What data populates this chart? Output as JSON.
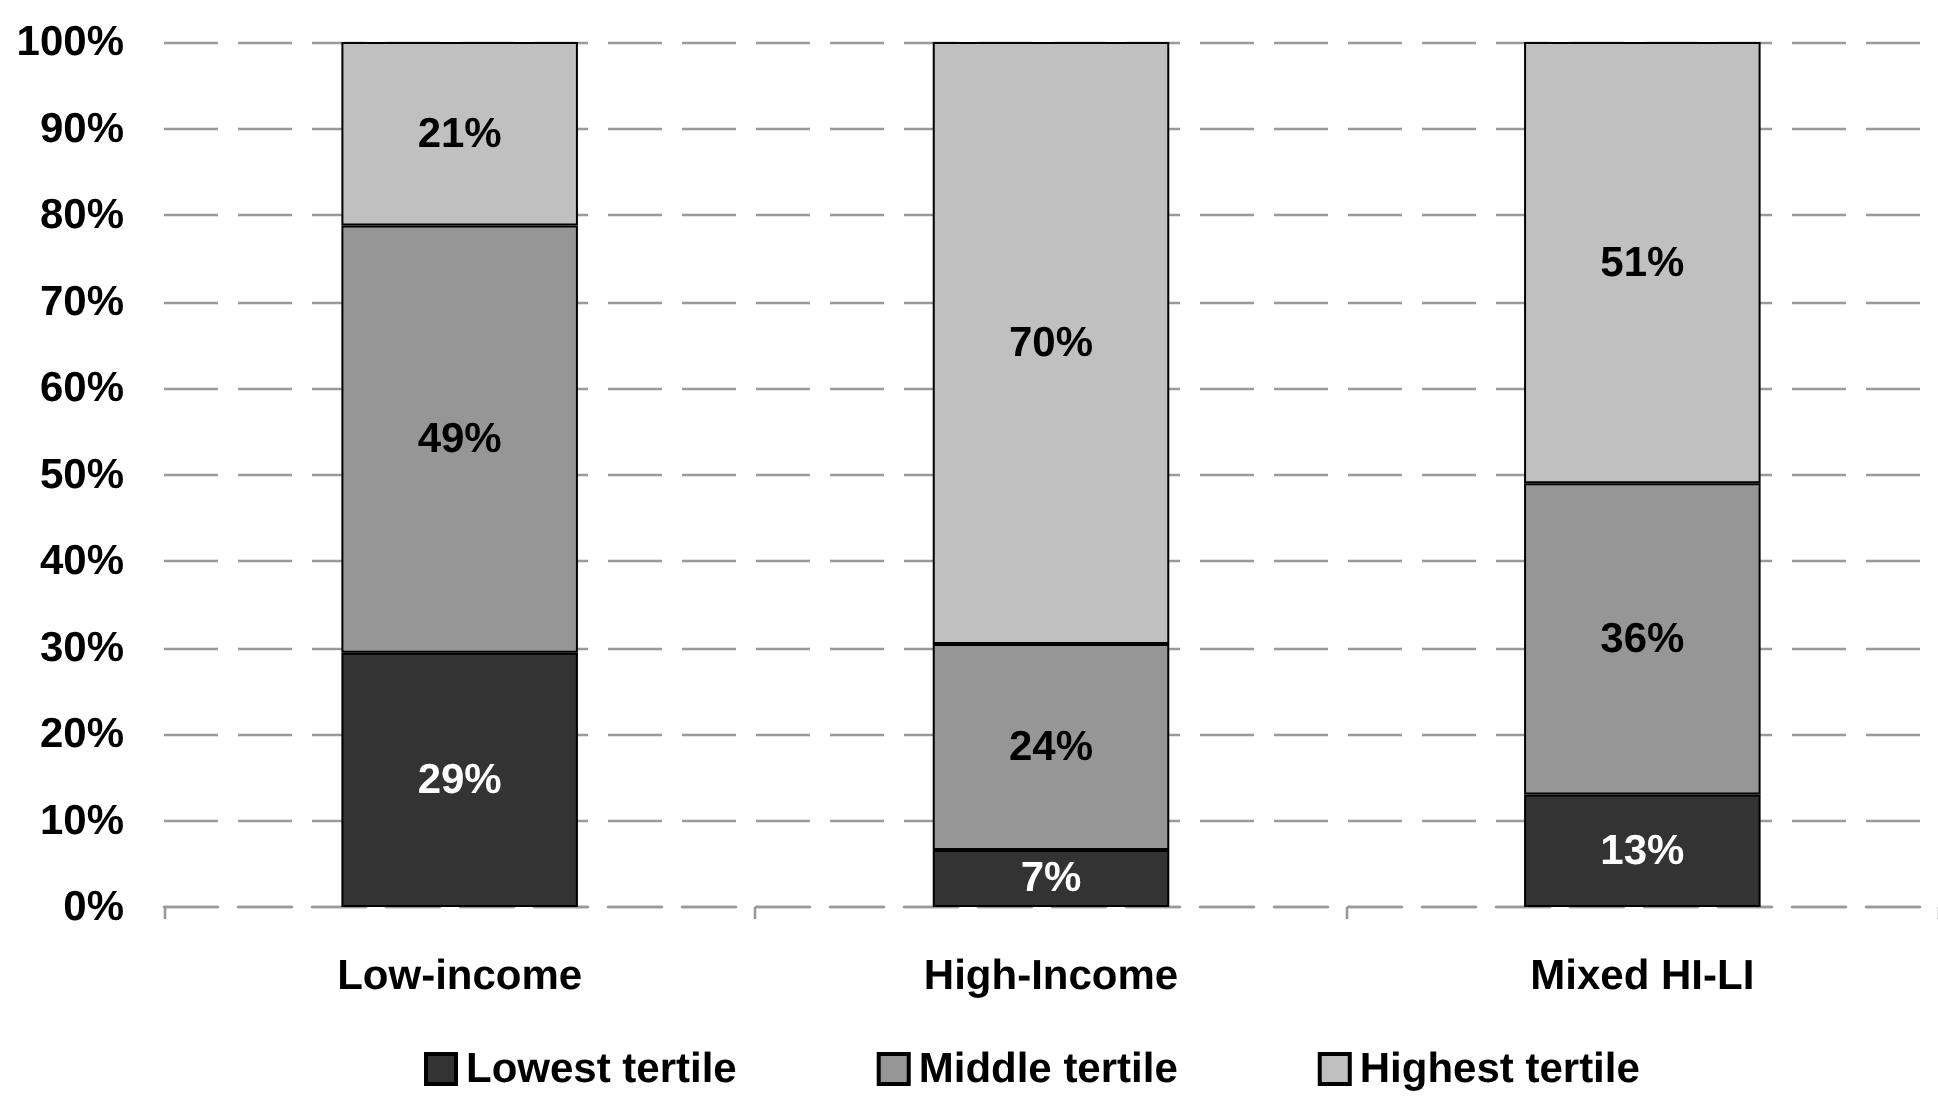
{
  "chart_data": {
    "type": "bar",
    "stacked": true,
    "categories": [
      "Low-income",
      "High-Income",
      "Mixed HI-LI"
    ],
    "series": [
      {
        "name": "Lowest tertile",
        "color": "#333333",
        "values": [
          29.4,
          6.6,
          13
        ],
        "value_labels": [
          "29%",
          "7%",
          "13%"
        ]
      },
      {
        "name": "Middle tertile",
        "color": "#969696",
        "values": [
          49.4,
          23.8,
          36
        ],
        "value_labels": [
          "49%",
          "24%",
          "36%"
        ]
      },
      {
        "name": "Highest tertile",
        "color": "#c0c0c0",
        "values": [
          21.2,
          69.6,
          51
        ],
        "value_labels": [
          "21%",
          "70%",
          "51%"
        ]
      }
    ],
    "ylim": [
      0,
      100
    ],
    "yticks": [
      {
        "value": 0,
        "label": "0%"
      },
      {
        "value": 10,
        "label": "10%"
      },
      {
        "value": 20,
        "label": "20%"
      },
      {
        "value": 30,
        "label": "30%"
      },
      {
        "value": 40,
        "label": "40%"
      },
      {
        "value": 50,
        "label": "50%"
      },
      {
        "value": 60,
        "label": "60%"
      },
      {
        "value": 70,
        "label": "70%"
      },
      {
        "value": 80,
        "label": "80%"
      },
      {
        "value": 90,
        "label": "90%"
      },
      {
        "value": 100,
        "label": "100%"
      }
    ],
    "grid": "y",
    "legend": "bottom"
  }
}
